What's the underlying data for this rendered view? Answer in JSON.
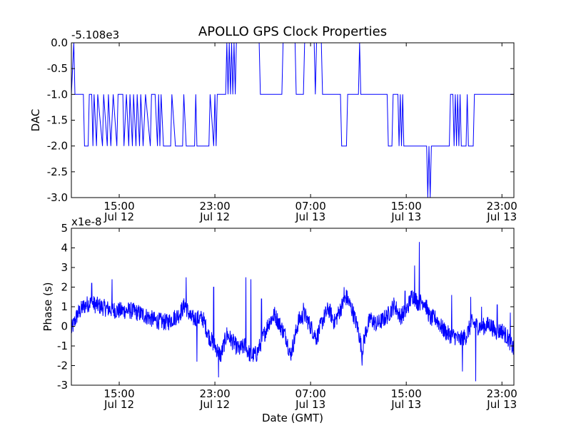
{
  "title": "APOLLO GPS Clock Properties",
  "chart_data": [
    {
      "type": "line",
      "id": "dac",
      "ylabel": "DAC",
      "offset_label": "-5.108e3",
      "ylim": [
        -3.0,
        0.0
      ],
      "yticks": [
        {
          "v": 0.0,
          "label": "0.0"
        },
        {
          "v": -0.5,
          "label": "-0.5"
        },
        {
          "v": -1.0,
          "label": "-1.0"
        },
        {
          "v": -1.5,
          "label": "-1.5"
        },
        {
          "v": -2.0,
          "label": "-2.0"
        },
        {
          "v": -2.5,
          "label": "-2.5"
        },
        {
          "v": -3.0,
          "label": "-3.0"
        }
      ],
      "xlim_hours": [
        11.0,
        48.0
      ],
      "xticks": [
        {
          "h": 15,
          "time": "15:00",
          "date": "Jul 12"
        },
        {
          "h": 23,
          "time": "23:00",
          "date": "Jul 12"
        },
        {
          "h": 31,
          "time": "07:00",
          "date": "Jul 13"
        },
        {
          "h": 39,
          "time": "15:00",
          "date": "Jul 13"
        },
        {
          "h": 47,
          "time": "23:00",
          "date": "Jul 13"
        }
      ],
      "series": [
        {
          "color": "#0000ff",
          "segments": [
            [
              11.0,
              -1.0
            ],
            [
              11.2,
              0.0
            ],
            [
              11.3,
              -1.0
            ],
            [
              12.0,
              -1.0
            ],
            [
              12.1,
              -2.0
            ],
            [
              12.4,
              -2.0
            ],
            [
              12.5,
              -1.0
            ],
            [
              12.7,
              -1.0
            ],
            [
              12.8,
              -2.0
            ],
            [
              12.9,
              -1.0
            ],
            [
              13.1,
              -2.0
            ],
            [
              13.2,
              -1.0
            ],
            [
              13.6,
              -2.0
            ],
            [
              13.7,
              -1.0
            ],
            [
              14.0,
              -2.0
            ],
            [
              14.1,
              -1.0
            ],
            [
              14.3,
              -2.0
            ],
            [
              14.5,
              -1.0
            ],
            [
              14.8,
              -2.0
            ],
            [
              14.9,
              -1.0
            ],
            [
              15.3,
              -1.0
            ],
            [
              15.4,
              -2.0
            ],
            [
              15.6,
              -1.0
            ],
            [
              15.8,
              -2.0
            ],
            [
              15.9,
              -1.0
            ],
            [
              16.1,
              -2.0
            ],
            [
              16.2,
              -1.0
            ],
            [
              16.4,
              -2.0
            ],
            [
              16.5,
              -1.0
            ],
            [
              16.7,
              -2.0
            ],
            [
              16.8,
              -1.0
            ],
            [
              17.0,
              -2.0
            ],
            [
              17.2,
              -1.0
            ],
            [
              17.6,
              -2.0
            ],
            [
              17.7,
              -1.0
            ],
            [
              18.0,
              -1.0
            ],
            [
              18.2,
              -2.0
            ],
            [
              18.3,
              -1.0
            ],
            [
              18.4,
              -2.0
            ],
            [
              18.5,
              -1.0
            ],
            [
              18.7,
              -2.0
            ],
            [
              19.3,
              -2.0
            ],
            [
              19.4,
              -1.0
            ],
            [
              19.7,
              -2.0
            ],
            [
              20.3,
              -2.0
            ],
            [
              20.4,
              -1.0
            ],
            [
              20.6,
              -2.0
            ],
            [
              21.3,
              -2.0
            ],
            [
              21.4,
              -1.0
            ],
            [
              21.5,
              -2.0
            ],
            [
              22.5,
              -2.0
            ],
            [
              22.6,
              -1.0
            ],
            [
              22.9,
              -2.0
            ],
            [
              23.0,
              -1.0
            ],
            [
              23.1,
              -2.0
            ],
            [
              23.2,
              -1.0
            ],
            [
              23.9,
              -1.0
            ],
            [
              24.0,
              0.0
            ],
            [
              24.1,
              -1.0
            ],
            [
              24.2,
              0.0
            ],
            [
              24.3,
              -1.0
            ],
            [
              24.4,
              0.0
            ],
            [
              24.5,
              -1.0
            ],
            [
              24.6,
              0.0
            ],
            [
              24.7,
              -1.0
            ],
            [
              24.8,
              0.0
            ],
            [
              26.7,
              0.0
            ],
            [
              26.8,
              -1.0
            ],
            [
              28.6,
              -1.0
            ],
            [
              28.7,
              0.0
            ],
            [
              29.7,
              0.0
            ],
            [
              29.8,
              -1.0
            ],
            [
              30.4,
              -1.0
            ],
            [
              30.5,
              0.0
            ],
            [
              31.3,
              0.0
            ],
            [
              31.4,
              -1.0
            ],
            [
              31.5,
              0.0
            ],
            [
              31.9,
              0.0
            ],
            [
              32.0,
              -1.0
            ],
            [
              33.5,
              -1.0
            ],
            [
              33.6,
              -2.0
            ],
            [
              34.0,
              -2.0
            ],
            [
              34.1,
              -1.0
            ],
            [
              35.0,
              -1.0
            ],
            [
              35.1,
              0.0
            ],
            [
              35.2,
              -1.0
            ],
            [
              37.4,
              -1.0
            ],
            [
              37.5,
              -2.0
            ],
            [
              37.8,
              -2.0
            ],
            [
              37.9,
              -1.0
            ],
            [
              38.3,
              -1.0
            ],
            [
              38.4,
              -2.0
            ],
            [
              38.5,
              -1.0
            ],
            [
              38.6,
              -2.0
            ],
            [
              38.7,
              -1.0
            ],
            [
              38.8,
              -2.0
            ],
            [
              39.5,
              -2.0
            ],
            [
              39.6,
              -2.0
            ],
            [
              40.7,
              -2.0
            ],
            [
              40.8,
              -3.0
            ],
            [
              40.9,
              -2.0
            ],
            [
              41.0,
              -3.0
            ],
            [
              41.1,
              -2.0
            ],
            [
              42.6,
              -2.0
            ],
            [
              42.7,
              -1.0
            ],
            [
              42.9,
              -1.0
            ],
            [
              43.0,
              -2.0
            ],
            [
              43.1,
              -1.0
            ],
            [
              43.2,
              -2.0
            ],
            [
              43.3,
              -1.0
            ],
            [
              43.4,
              -2.0
            ],
            [
              43.5,
              -1.0
            ],
            [
              43.6,
              -2.0
            ],
            [
              44.0,
              -2.0
            ],
            [
              44.1,
              -1.0
            ],
            [
              44.2,
              -2.0
            ],
            [
              44.6,
              -2.0
            ],
            [
              44.7,
              -1.0
            ],
            [
              48.0,
              -1.0
            ]
          ]
        }
      ]
    },
    {
      "type": "line",
      "id": "phase",
      "ylabel": "Phase (s)",
      "xlabel": "Date (GMT)",
      "offset_label": "x1e-8",
      "ylim": [
        -3,
        5
      ],
      "yticks": [
        {
          "v": 5,
          "label": "5"
        },
        {
          "v": 4,
          "label": "4"
        },
        {
          "v": 3,
          "label": "3"
        },
        {
          "v": 2,
          "label": "2"
        },
        {
          "v": 1,
          "label": "1"
        },
        {
          "v": 0,
          "label": "0"
        },
        {
          "v": -1,
          "label": "-1"
        },
        {
          "v": -2,
          "label": "-2"
        },
        {
          "v": -3,
          "label": "-3"
        }
      ],
      "xlim_hours": [
        11.0,
        48.0
      ],
      "xticks": [
        {
          "h": 15,
          "time": "15:00",
          "date": "Jul 12"
        },
        {
          "h": 23,
          "time": "23:00",
          "date": "Jul 12"
        },
        {
          "h": 31,
          "time": "07:00",
          "date": "Jul 13"
        },
        {
          "h": 39,
          "time": "15:00",
          "date": "Jul 13"
        },
        {
          "h": 47,
          "time": "23:00",
          "date": "Jul 13"
        }
      ],
      "series": [
        {
          "color": "#0000ff",
          "trend": [
            [
              11.0,
              -0.2
            ],
            [
              11.5,
              0.6
            ],
            [
              12.0,
              1.0
            ],
            [
              12.5,
              1.2
            ],
            [
              13.0,
              1.1
            ],
            [
              14.0,
              0.9
            ],
            [
              15.0,
              0.8
            ],
            [
              16.0,
              0.8
            ],
            [
              17.0,
              0.6
            ],
            [
              18.0,
              0.3
            ],
            [
              19.0,
              0.2
            ],
            [
              20.0,
              0.6
            ],
            [
              20.5,
              1.1
            ],
            [
              21.0,
              0.4
            ],
            [
              22.0,
              0.4
            ],
            [
              22.5,
              -0.5
            ],
            [
              23.0,
              -1.0
            ],
            [
              23.5,
              -1.5
            ],
            [
              24.0,
              -0.4
            ],
            [
              24.5,
              -0.8
            ],
            [
              25.0,
              -1.2
            ],
            [
              25.5,
              -1.0
            ],
            [
              26.0,
              -1.5
            ],
            [
              26.5,
              -1.4
            ],
            [
              27.0,
              -0.6
            ],
            [
              27.5,
              0.2
            ],
            [
              28.0,
              0.6
            ],
            [
              28.5,
              0.0
            ],
            [
              29.0,
              -0.6
            ],
            [
              29.3,
              -1.5
            ],
            [
              29.6,
              -0.8
            ],
            [
              30.0,
              0.3
            ],
            [
              30.5,
              0.6
            ],
            [
              31.0,
              0.0
            ],
            [
              31.5,
              -0.6
            ],
            [
              32.0,
              0.3
            ],
            [
              32.5,
              0.9
            ],
            [
              33.0,
              0.2
            ],
            [
              33.5,
              0.9
            ],
            [
              34.0,
              1.5
            ],
            [
              34.5,
              0.8
            ],
            [
              35.0,
              -0.2
            ],
            [
              35.3,
              -1.3
            ],
            [
              35.6,
              -0.3
            ],
            [
              36.0,
              0.4
            ],
            [
              36.5,
              0.1
            ],
            [
              37.0,
              0.3
            ],
            [
              37.5,
              0.6
            ],
            [
              38.0,
              1.1
            ],
            [
              38.5,
              0.5
            ],
            [
              39.0,
              0.8
            ],
            [
              39.5,
              1.6
            ],
            [
              40.0,
              1.2
            ],
            [
              40.5,
              1.3
            ],
            [
              41.0,
              0.4
            ],
            [
              41.5,
              0.4
            ],
            [
              42.0,
              -0.1
            ],
            [
              42.5,
              -0.4
            ],
            [
              43.0,
              -0.5
            ],
            [
              43.5,
              -0.7
            ],
            [
              44.0,
              -0.5
            ],
            [
              44.5,
              0.2
            ],
            [
              45.0,
              0.0
            ],
            [
              45.5,
              0.0
            ],
            [
              46.0,
              0.1
            ],
            [
              46.5,
              -0.3
            ],
            [
              47.0,
              -0.2
            ],
            [
              47.5,
              -0.6
            ],
            [
              48.0,
              -1.2
            ]
          ],
          "noise_amplitude": 0.45,
          "spikes": [
            [
              12.7,
              2.2
            ],
            [
              14.4,
              2.4
            ],
            [
              20.6,
              2.5
            ],
            [
              21.5,
              -1.8
            ],
            [
              22.9,
              2.0
            ],
            [
              23.3,
              -2.6
            ],
            [
              25.6,
              2.5
            ],
            [
              26.0,
              2.4
            ],
            [
              26.9,
              1.4
            ],
            [
              30.4,
              1.2
            ],
            [
              33.8,
              2.0
            ],
            [
              35.3,
              -2.0
            ],
            [
              38.9,
              1.8
            ],
            [
              39.7,
              3.1
            ],
            [
              40.1,
              4.3
            ],
            [
              42.8,
              1.6
            ],
            [
              43.7,
              -2.3
            ],
            [
              44.4,
              1.5
            ],
            [
              44.8,
              -2.8
            ],
            [
              45.3,
              1.0
            ],
            [
              46.6,
              1.1
            ],
            [
              47.7,
              0.7
            ]
          ]
        }
      ]
    }
  ]
}
